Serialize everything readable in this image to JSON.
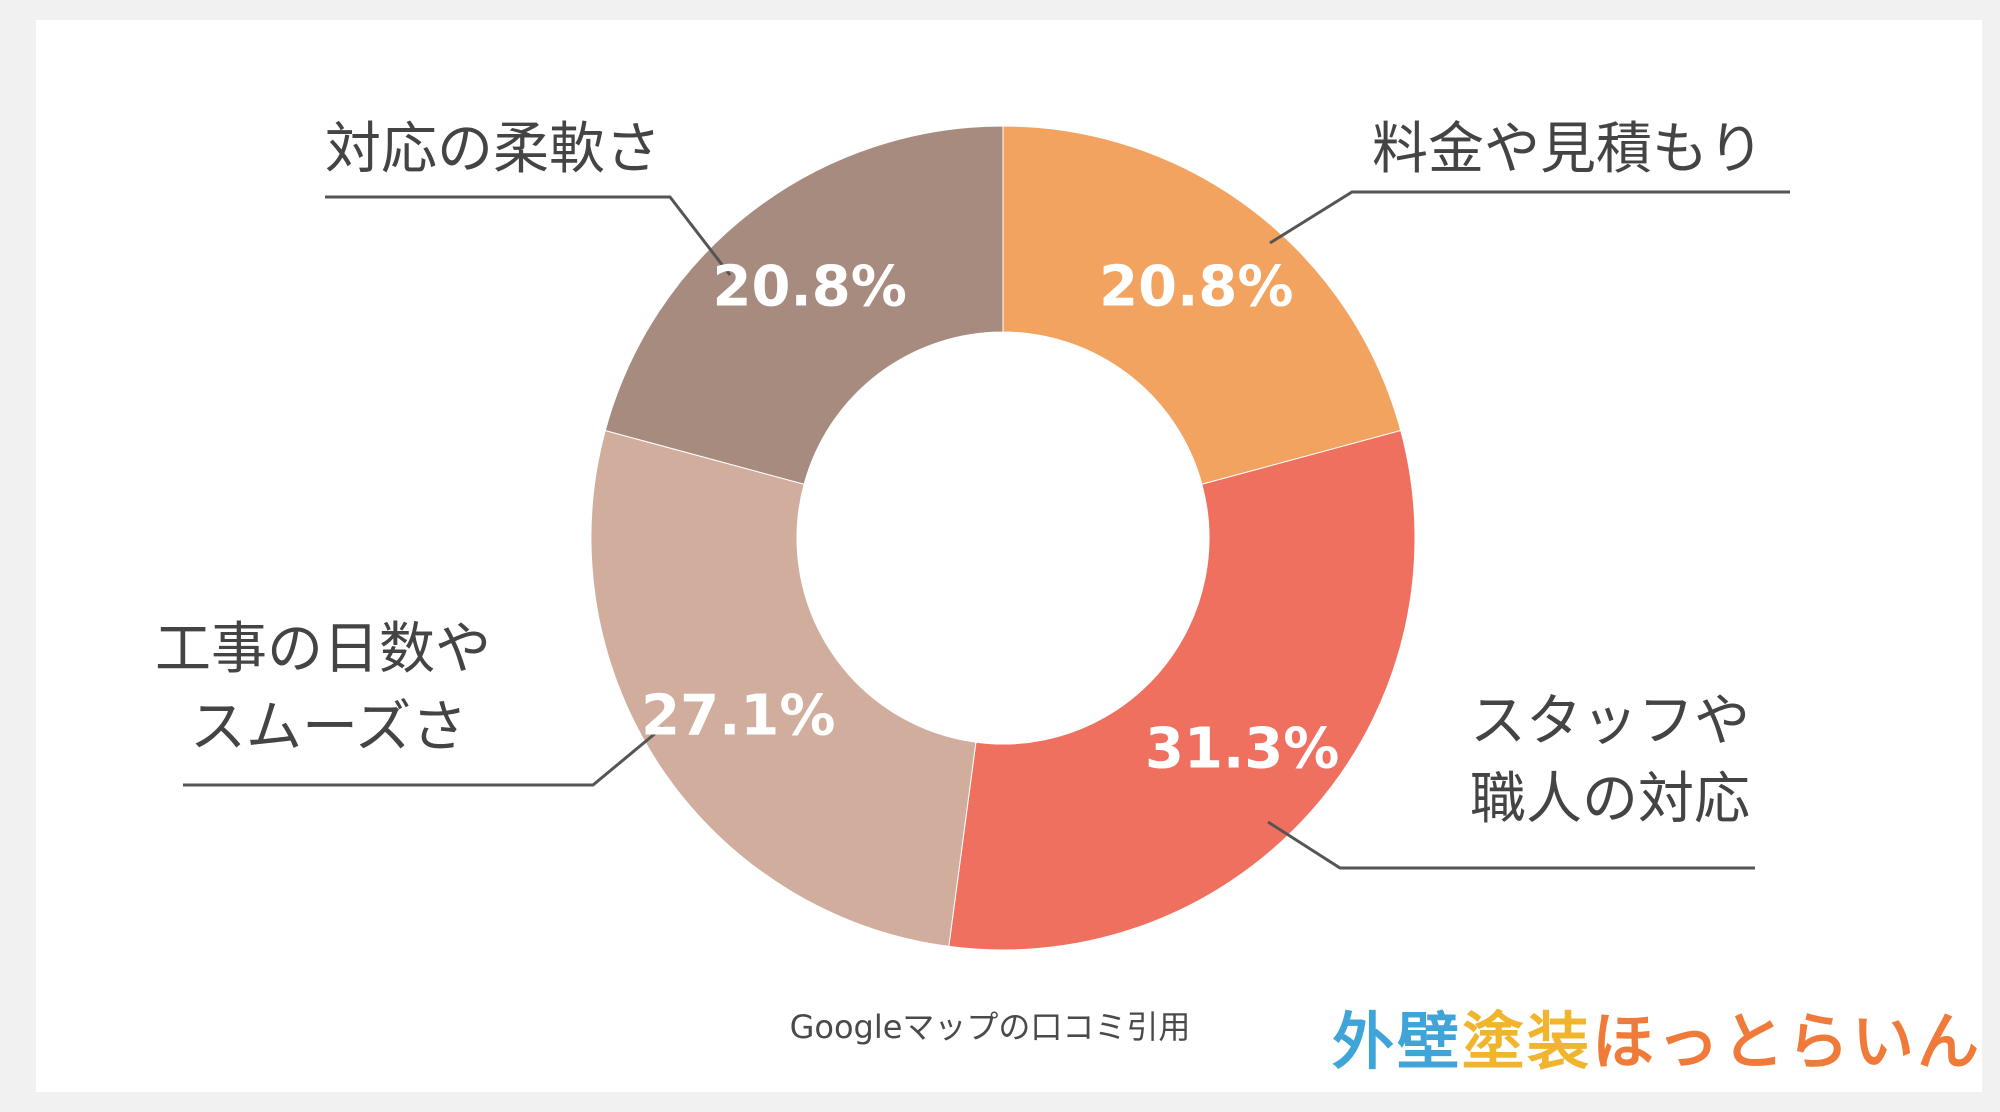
{
  "chart_data": {
    "type": "pie",
    "variant": "donut",
    "slices": [
      {
        "label_lines": [
          "料金や見積もり"
        ],
        "value": 20.8,
        "value_label": "20.8%",
        "color": "#f2a35f"
      },
      {
        "label_lines": [
          "スタッフや",
          "職人の対応"
        ],
        "value": 31.3,
        "value_label": "31.3%",
        "color": "#f07060"
      },
      {
        "label_lines": [
          "工事の日数や",
          "スムーズさ"
        ],
        "value": 27.1,
        "value_label": "27.1%",
        "color": "#d0ad9d"
      },
      {
        "label_lines": [
          "対応の柔軟さ"
        ],
        "value": 20.8,
        "value_label": "20.8%",
        "color": "#a88b7f"
      }
    ],
    "start_angle": "top",
    "direction": "clockwise"
  },
  "source_note": "Googleマップの口コミ引用",
  "logo": {
    "text": "外壁塗装ほっとらいん",
    "colors": [
      "#3fa4d8",
      "#3fa4d8",
      "#f0b42d",
      "#f0b42d",
      "#f07a3a",
      "#f07a3a",
      "#f07a3a",
      "#f07a3a",
      "#f07a3a",
      "#f07a3a"
    ]
  },
  "colors": {
    "leader_line": "#555555",
    "label_text": "#444444",
    "background": "#f1f1f1",
    "card": "#ffffff"
  }
}
